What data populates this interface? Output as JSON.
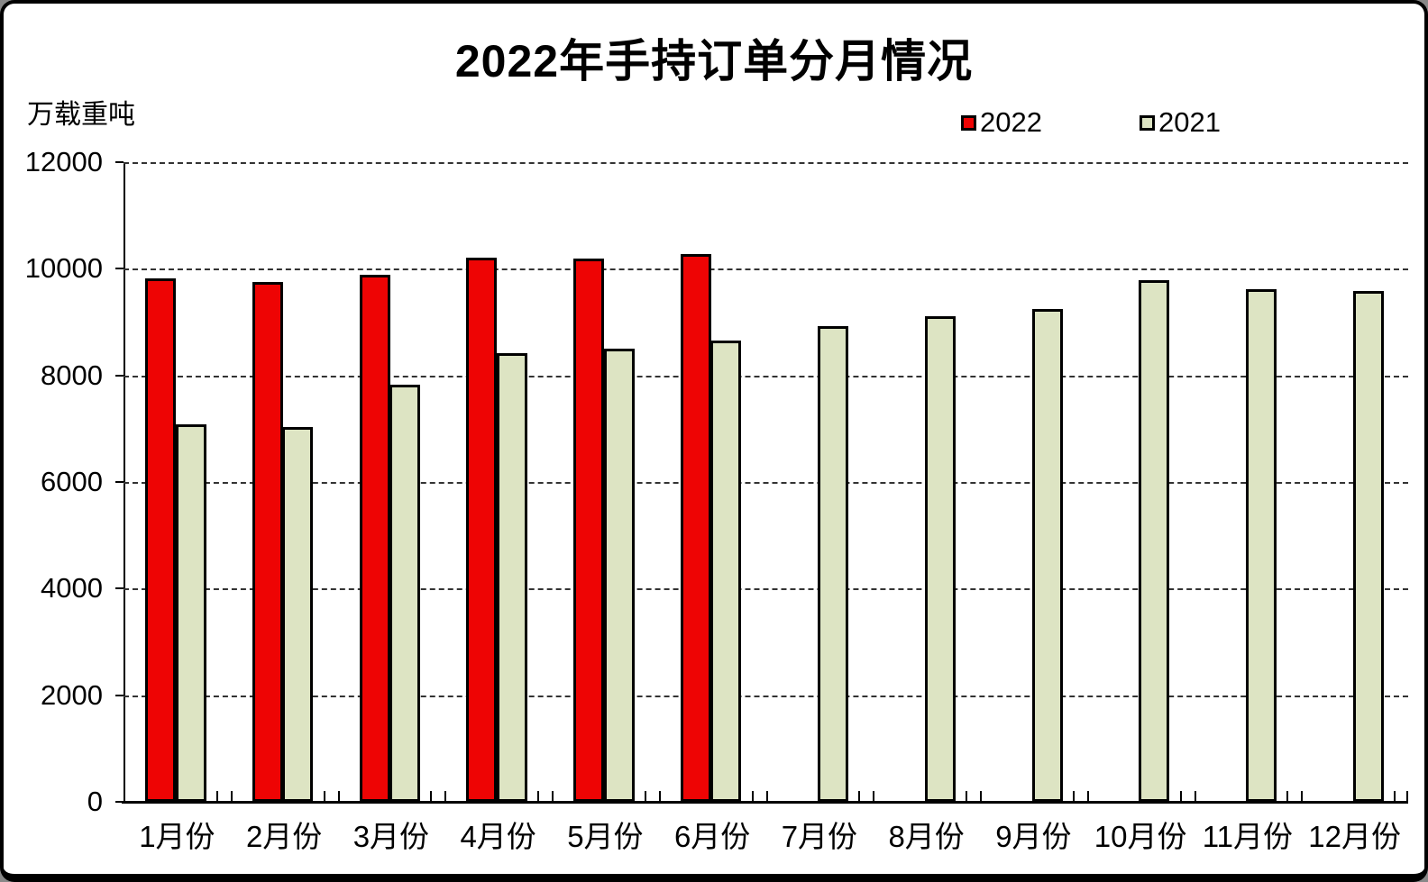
{
  "title": "2022年手持订单分月情况",
  "unit_label": "万载重吨",
  "legend": {
    "items": [
      {
        "label": "2022",
        "color": "#ee0404"
      },
      {
        "label": "2021",
        "color": "#dde4c3"
      }
    ]
  },
  "chart_data": {
    "type": "bar",
    "title": "2022年手持订单分月情况",
    "ylabel": "万载重吨",
    "categories": [
      "1月份",
      "2月份",
      "3月份",
      "4月份",
      "5月份",
      "6月份",
      "7月份",
      "8月份",
      "9月份",
      "10月份",
      "11月份",
      "12月份"
    ],
    "series": [
      {
        "name": "2022",
        "color": "#ee0404",
        "values": [
          9820,
          9760,
          9880,
          10210,
          10190,
          10270,
          null,
          null,
          null,
          null,
          null,
          null
        ]
      },
      {
        "name": "2021",
        "color": "#dde4c3",
        "values": [
          7080,
          7030,
          7830,
          8420,
          8500,
          8660,
          8930,
          9110,
          9250,
          9780,
          9620,
          9580
        ]
      }
    ],
    "ylim": [
      0,
      12000
    ],
    "yticks": [
      0,
      2000,
      4000,
      6000,
      8000,
      10000,
      12000
    ],
    "grid": "horizontal-dashed",
    "legend_position": "top-right",
    "bar_border_color": "#000000"
  }
}
